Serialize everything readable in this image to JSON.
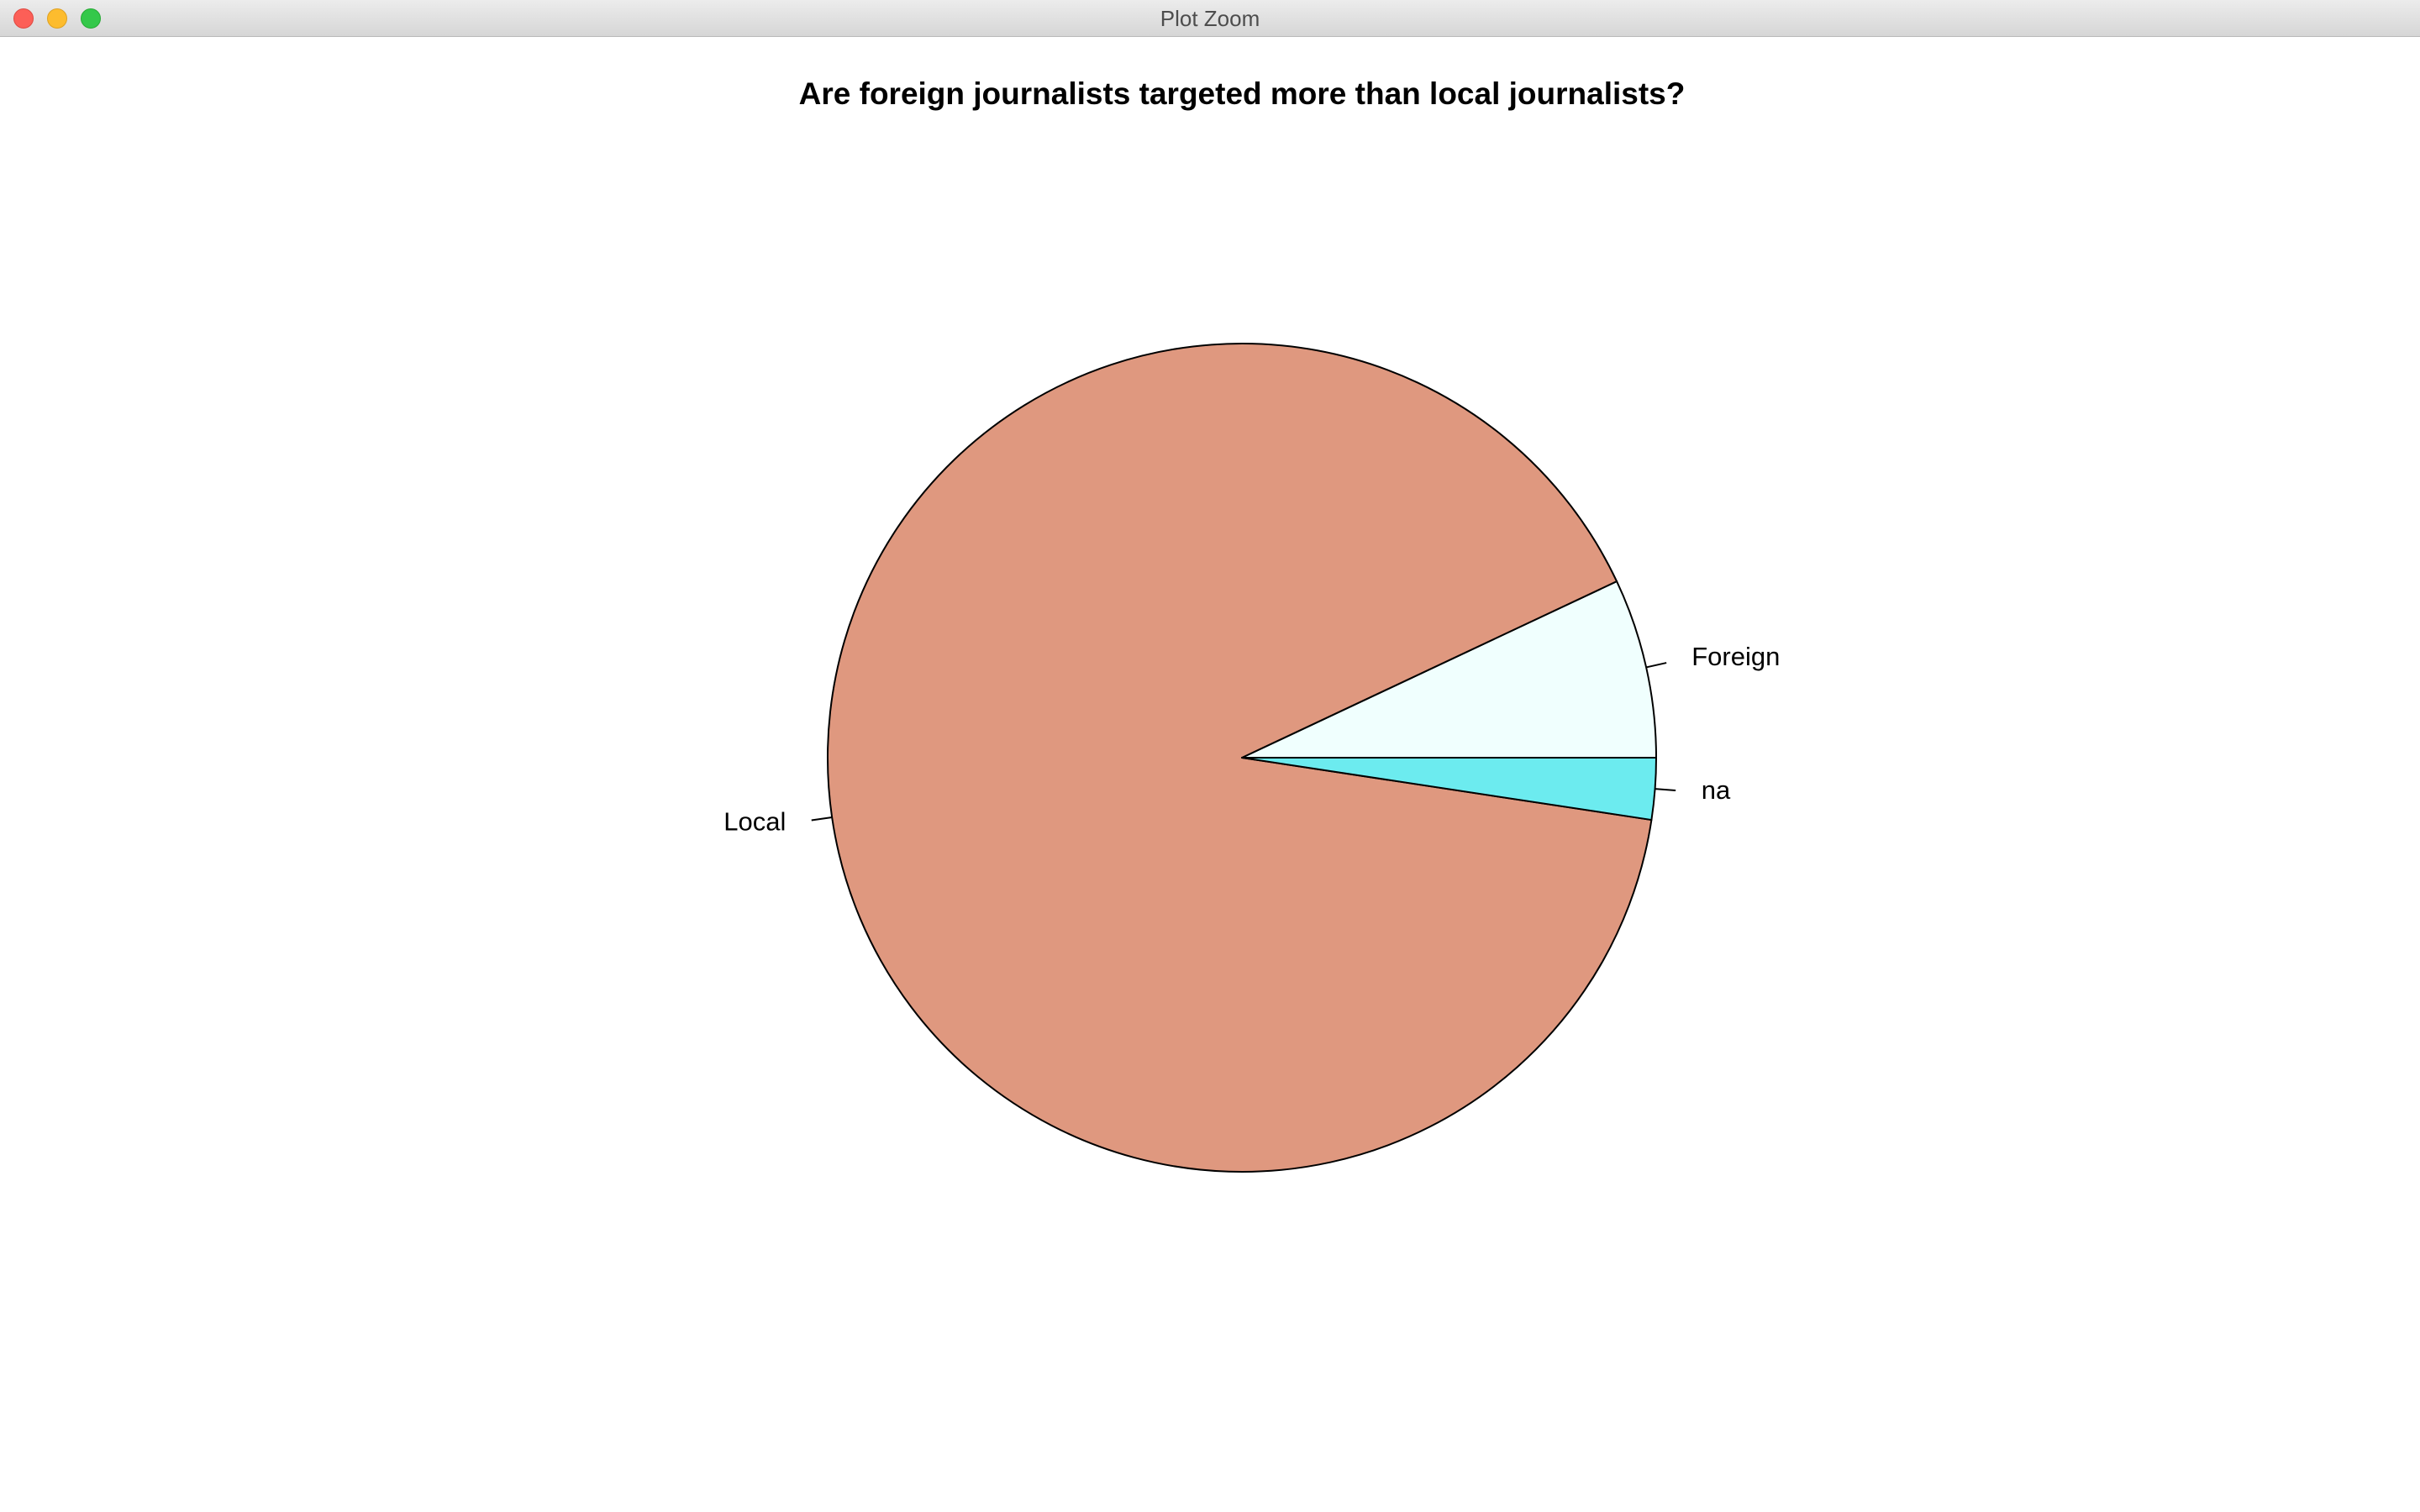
{
  "window": {
    "title": "Plot Zoom"
  },
  "colors": {
    "local": "#df987f",
    "foreign": "#f0fffe",
    "na": "#6cebef",
    "outline": "#000000"
  },
  "chart_data": {
    "type": "pie",
    "title": "Are foreign journalists targeted more than local journalists?",
    "start": "counterclockwise from 3 o'clock",
    "slices": [
      {
        "label": "Foreign",
        "value": 7.0,
        "color": "#f0fffe"
      },
      {
        "label": "Local",
        "value": 90.6,
        "color": "#df987f"
      },
      {
        "label": "na",
        "value": 2.4,
        "color": "#6cebef"
      }
    ]
  }
}
